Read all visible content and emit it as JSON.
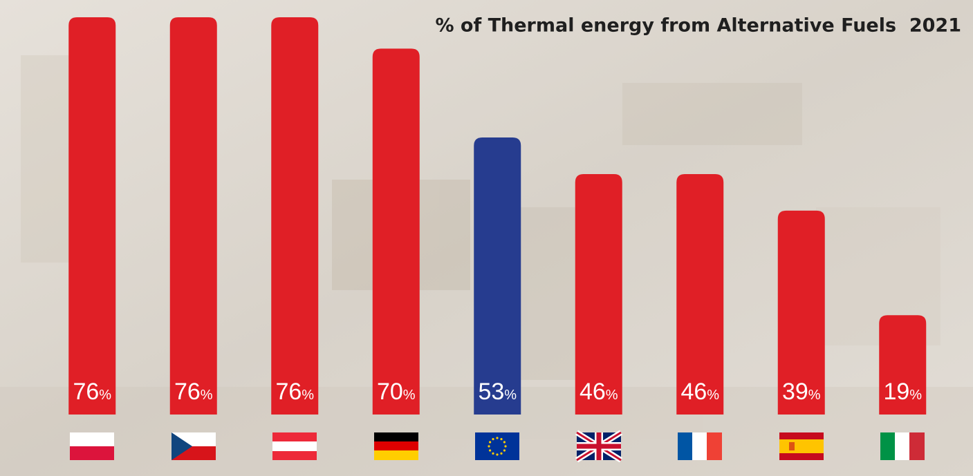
{
  "chart_data": {
    "type": "bar",
    "title": "% of Thermal energy from Alternative Fuels  2021",
    "categories": [
      null,
      null,
      null,
      null,
      null,
      null,
      null,
      null,
      null
    ],
    "values": [
      76,
      76,
      76,
      70,
      53,
      46,
      46,
      39,
      19
    ],
    "value_labels": [
      "76%",
      "76%",
      "76%",
      "70%",
      "53%",
      "46%",
      "46%",
      "39%",
      "19%"
    ],
    "colors": [
      "#e01f26",
      "#e01f26",
      "#e01f26",
      "#e01f26",
      "#263c8f",
      "#e01f26",
      "#e01f26",
      "#e01f26",
      "#e01f26"
    ]
  }
}
